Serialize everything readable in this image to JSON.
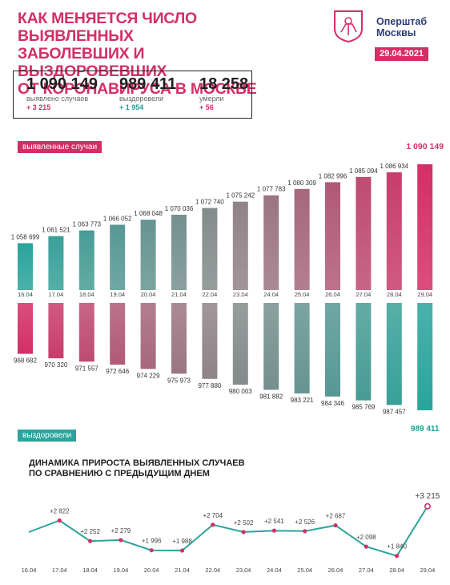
{
  "header": {
    "title_lines": [
      "КАК МЕНЯЕТСЯ ЧИСЛО ВЫЯВЛЕННЫХ",
      "ЗАБОЛЕВШИХ И ВЫЗДОРОВЕВШИХ",
      "ОТ КОРОНАВИРУСА В МОСКВЕ"
    ],
    "brand_lines": [
      "Оперштаб",
      "Москвы"
    ],
    "date": "29.04.2021",
    "logo_icon": "moscow-coat-of-arms-icon"
  },
  "stats": [
    {
      "value": "1 090 149",
      "label": "выявлено случаев",
      "delta": "+ 3 215",
      "color": "#d32f67"
    },
    {
      "value": "989 411",
      "label": "выздоровели",
      "delta": "+ 1 954",
      "color": "#1f9f94"
    },
    {
      "value": "18 258",
      "label": "умерли",
      "delta": "+ 56",
      "color": "#d32f67"
    }
  ],
  "colors": {
    "pink": "#d32f67",
    "teal": "#2aa49c",
    "grey": "#8a8a8a"
  },
  "chart_data": [
    {
      "type": "bar",
      "series_label": "выявленные случаи",
      "categories": [
        "16.04",
        "17.04",
        "18.04",
        "19.04",
        "20.04",
        "21.04",
        "22.04",
        "23.04",
        "24.04",
        "25.04",
        "26.04",
        "27.04",
        "28.04",
        "29.04"
      ],
      "values": [
        1058699,
        1061521,
        1063773,
        1066052,
        1068048,
        1070036,
        1072740,
        1075242,
        1077783,
        1080309,
        1082996,
        1085094,
        1086934,
        1090149
      ],
      "value_labels": [
        "1 058 699",
        "1 061 521",
        "1 063 773",
        "1 066 052",
        "1 068 048",
        "1 070 036",
        "1 072 740",
        "1 075 242",
        "1 077 783",
        "1 080 309",
        "1 082 996",
        "1 085 094",
        "1 086 934",
        "1 090 149"
      ]
    },
    {
      "type": "bar",
      "series_label": "выздоровели",
      "categories": [
        "16.04",
        "17.04",
        "18.04",
        "19.04",
        "20.04",
        "21.04",
        "22.04",
        "23.04",
        "24.04",
        "25.04",
        "26.04",
        "27.04",
        "28.04",
        "29.04"
      ],
      "values": [
        968682,
        970320,
        971557,
        972646,
        974229,
        975973,
        977880,
        980003,
        981882,
        983221,
        984346,
        985769,
        987457,
        989411
      ],
      "value_labels": [
        "968 682",
        "970 320",
        "971 557",
        "972 646",
        "974 229",
        "975 973",
        "977 880",
        "980 003",
        "981 882",
        "983 221",
        "984 346",
        "985 769",
        "987 457",
        "989 411"
      ]
    },
    {
      "type": "line",
      "title_lines": [
        "ДИНАМИКА ПРИРОСТА ВЫЯВЛЕННЫХ СЛУЧАЕВ",
        "ПО СРАВНЕНИЮ С ПРЕДЫДУЩИМ ДНЕМ"
      ],
      "categories": [
        "16.04",
        "17.04",
        "18.04",
        "19.04",
        "20.04",
        "21.04",
        "22.04",
        "23.04",
        "24.04",
        "25.04",
        "26.04",
        "27.04",
        "28.04",
        "29.04"
      ],
      "values": [
        2500,
        2822,
        2252,
        2279,
        1996,
        1988,
        2704,
        2502,
        2541,
        2526,
        2687,
        2098,
        1840,
        3215
      ],
      "value_labels": [
        "",
        "+2 822",
        "+2 252",
        "+2 279",
        "+1 996",
        "+1 988",
        "+2 704",
        "+2 502",
        "+2 541",
        "+2 526",
        "+2 687",
        "+2 098",
        "+1 840",
        "+3 215"
      ]
    }
  ]
}
